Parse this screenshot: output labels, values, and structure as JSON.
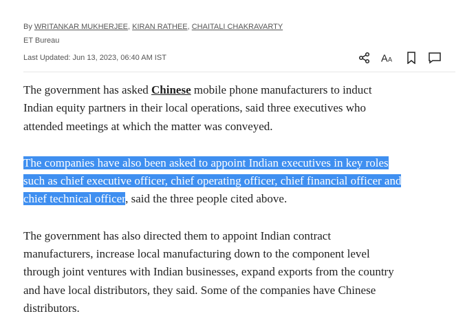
{
  "meta": {
    "by": "By ",
    "authors": [
      "WRITANKAR MUKHERJEE",
      "KIRAN RATHEE",
      "CHAITALI CHAKRAVARTY"
    ],
    "bureau": "ET Bureau",
    "updated": "Last Updated: Jun 13, 2023, 06:40 AM IST"
  },
  "toolbar": {
    "icons": [
      "share-icon",
      "font-size-icon",
      "bookmark-icon",
      "comment-icon"
    ]
  },
  "highlight_color": "#3f8ff0",
  "article": {
    "p1": {
      "line1_pre": "The government has asked ",
      "line1_link": "Chinese",
      "line1_post": " mobile phone manufacturers to induct",
      "line2": "Indian equity partners in their local operations, said three executives who",
      "line3": "attended meetings at which the matter was conveyed."
    },
    "p2": {
      "line1": "The companies have also been asked to appoint Indian executives in key roles",
      "line2": "such as chief executive officer, chief operating officer, chief financial officer and",
      "line3_selected": "chief technical officer",
      "line3_rest": ", said the three people cited above."
    },
    "p3": {
      "lines": [
        "The government has also directed them to appoint Indian contract",
        "manufacturers, increase local manufacturing down to the component level",
        "through joint ventures with Indian businesses, expand exports from the country",
        "and have local distributors, they said. Some of the companies have Chinese",
        "distributors."
      ]
    }
  }
}
